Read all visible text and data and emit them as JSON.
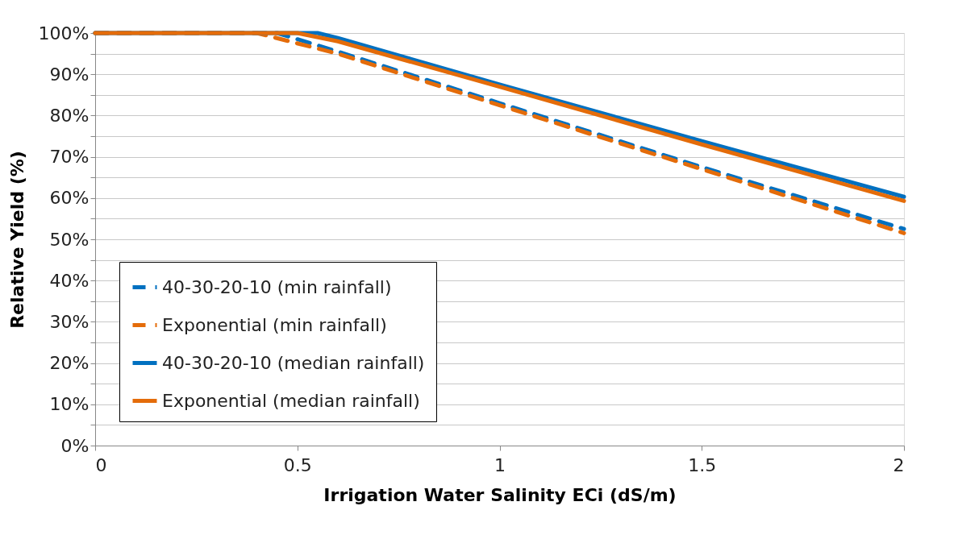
{
  "chart_data": {
    "type": "line",
    "xlabel": "Irrigation Water Salinity ECi (dS/m)",
    "ylabel": "Relative Yield (%)",
    "series": [
      {
        "name": "40-30-20-10 (min rainfall)",
        "color": "#0070c0",
        "line_style": "dashed",
        "x": [
          0,
          0.45,
          0.6,
          1,
          1.5,
          2
        ],
        "values": [
          100,
          100,
          95.5,
          83,
          67.5,
          52.5
        ]
      },
      {
        "name": "Exponential (min rainfall)",
        "color": "#e46c0a",
        "line_style": "dashed",
        "x": [
          0,
          0.4,
          0.6,
          1,
          1.5,
          2
        ],
        "values": [
          100,
          100,
          95,
          82.5,
          67,
          51.5
        ]
      },
      {
        "name": "40-30-20-10 (median rainfall)",
        "color": "#0070c0",
        "line_style": "solid",
        "x": [
          0,
          0.55,
          0.6,
          1,
          1.5,
          2
        ],
        "values": [
          100,
          100,
          98.8,
          87.5,
          73.8,
          60.3
        ]
      },
      {
        "name": "Exponential (median rainfall)",
        "color": "#e46c0a",
        "line_style": "solid",
        "x": [
          0,
          0.5,
          0.6,
          1,
          1.5,
          2
        ],
        "values": [
          100,
          100,
          98,
          87,
          73,
          59.3
        ]
      }
    ],
    "xlim": [
      0,
      2
    ],
    "xticks": [
      0,
      0.5,
      1,
      1.5,
      2
    ],
    "ylim": [
      0,
      100
    ],
    "yticks": [
      {
        "value": 0,
        "label": "0%"
      },
      {
        "value": 5,
        "label": null
      },
      {
        "value": 10,
        "label": "10%"
      },
      {
        "value": 15,
        "label": null
      },
      {
        "value": 20,
        "label": "20%"
      },
      {
        "value": 25,
        "label": null
      },
      {
        "value": 30,
        "label": "30%"
      },
      {
        "value": 35,
        "label": null
      },
      {
        "value": 40,
        "label": "40%"
      },
      {
        "value": 45,
        "label": null
      },
      {
        "value": 50,
        "label": "50%"
      },
      {
        "value": 55,
        "label": null
      },
      {
        "value": 60,
        "label": "60%"
      },
      {
        "value": 65,
        "label": null
      },
      {
        "value": 70,
        "label": "70%"
      },
      {
        "value": 75,
        "label": null
      },
      {
        "value": 80,
        "label": "80%"
      },
      {
        "value": 85,
        "label": null
      },
      {
        "value": 90,
        "label": "90%"
      },
      {
        "value": 95,
        "label": null
      },
      {
        "value": 100,
        "label": "100%"
      }
    ],
    "grid": "y",
    "legend": "bottom left",
    "marker": "none"
  }
}
